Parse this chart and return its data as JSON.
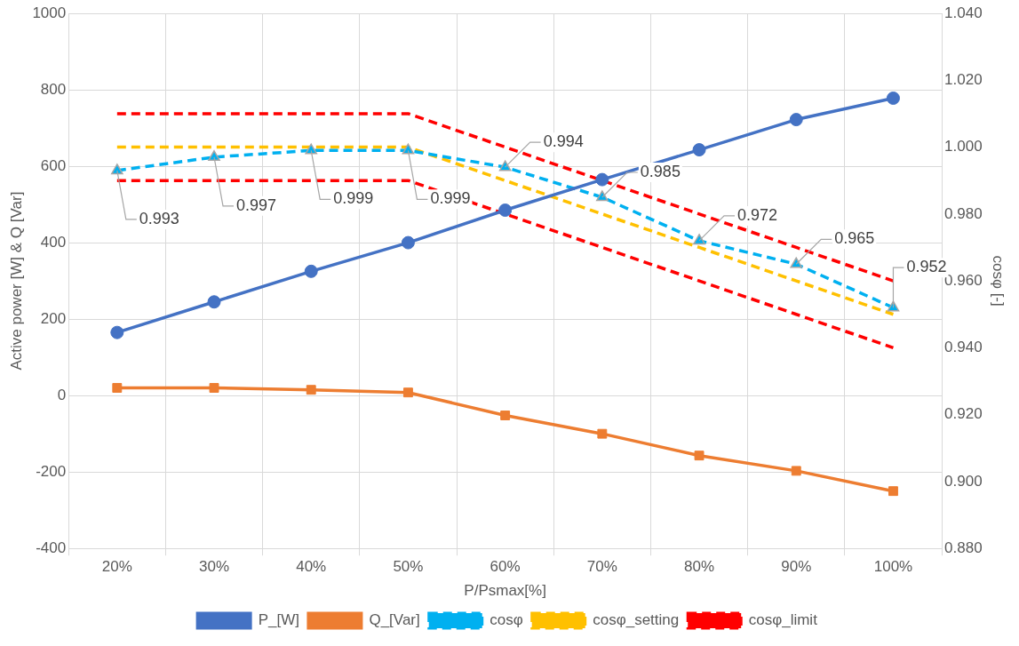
{
  "chart_data": {
    "type": "line",
    "categories": [
      "20%",
      "30%",
      "40%",
      "50%",
      "60%",
      "70%",
      "80%",
      "90%",
      "100%"
    ],
    "xlabel": "P/Psmax[%]",
    "ylabel": "Active power [W] & Q [Var]",
    "y2label": "cosφ [-]",
    "ylim": [
      -400,
      1000
    ],
    "yticks": [
      -400,
      -200,
      0,
      200,
      400,
      600,
      800,
      1000
    ],
    "y2lim": [
      0.88,
      1.04
    ],
    "y2ticks": [
      {
        "value": 0.88,
        "label": "0.880"
      },
      {
        "value": 0.9,
        "label": "0.900"
      },
      {
        "value": 0.92,
        "label": "0.920"
      },
      {
        "value": 0.94,
        "label": "0.940"
      },
      {
        "value": 0.96,
        "label": "0.960"
      },
      {
        "value": 0.98,
        "label": "0.980"
      },
      {
        "value": 1.0,
        "label": "1.000"
      },
      {
        "value": 1.02,
        "label": "1.020"
      },
      {
        "value": 1.04,
        "label": "1.040"
      }
    ],
    "grid": true,
    "legend": "bottom",
    "series": [
      {
        "name": "P_[W]",
        "color": "#4472c4",
        "marker": "circle",
        "line_style": "solid",
        "values": [
          165,
          245,
          325,
          400,
          485,
          565,
          643,
          722,
          778
        ]
      },
      {
        "name": "Q_[Var]",
        "color": "#ed7d31",
        "marker": "square",
        "line_style": "solid",
        "values": [
          20,
          20,
          15,
          8,
          -52,
          -100,
          -157,
          -197,
          -250
        ]
      },
      {
        "name": "cosφ",
        "color": "#00b0f0",
        "marker": "triangle",
        "line_style": "dashed",
        "axis": "y2",
        "values": [
          0.993,
          0.997,
          0.999,
          0.999,
          0.994,
          0.985,
          0.972,
          0.965,
          0.952
        ],
        "value_labels": [
          "0.993",
          "0.997",
          "0.999",
          "0.999",
          "0.994",
          "0.985",
          "0.972",
          "0.965",
          "0.952"
        ]
      },
      {
        "name": "cosφ_setting",
        "color": "#ffc000",
        "marker": "none",
        "line_style": "dashed",
        "axis": "y2",
        "values": [
          1.0,
          1.0,
          1.0,
          1.0,
          0.99,
          0.98,
          0.97,
          0.96,
          0.95
        ]
      },
      {
        "name": "cosφ_limit",
        "color": "#ff0000",
        "marker": "none",
        "line_style": "dashed",
        "axis": "y2",
        "values": [
          1.01,
          1.01,
          1.01,
          1.01,
          1.0,
          0.99,
          0.98,
          0.97,
          0.96
        ]
      },
      {
        "color": "#ff0000",
        "marker": "none",
        "line_style": "dashed",
        "axis": "y2",
        "values": [
          0.99,
          0.99,
          0.99,
          0.99,
          0.98,
          0.97,
          0.96,
          0.95,
          0.94
        ]
      }
    ]
  }
}
